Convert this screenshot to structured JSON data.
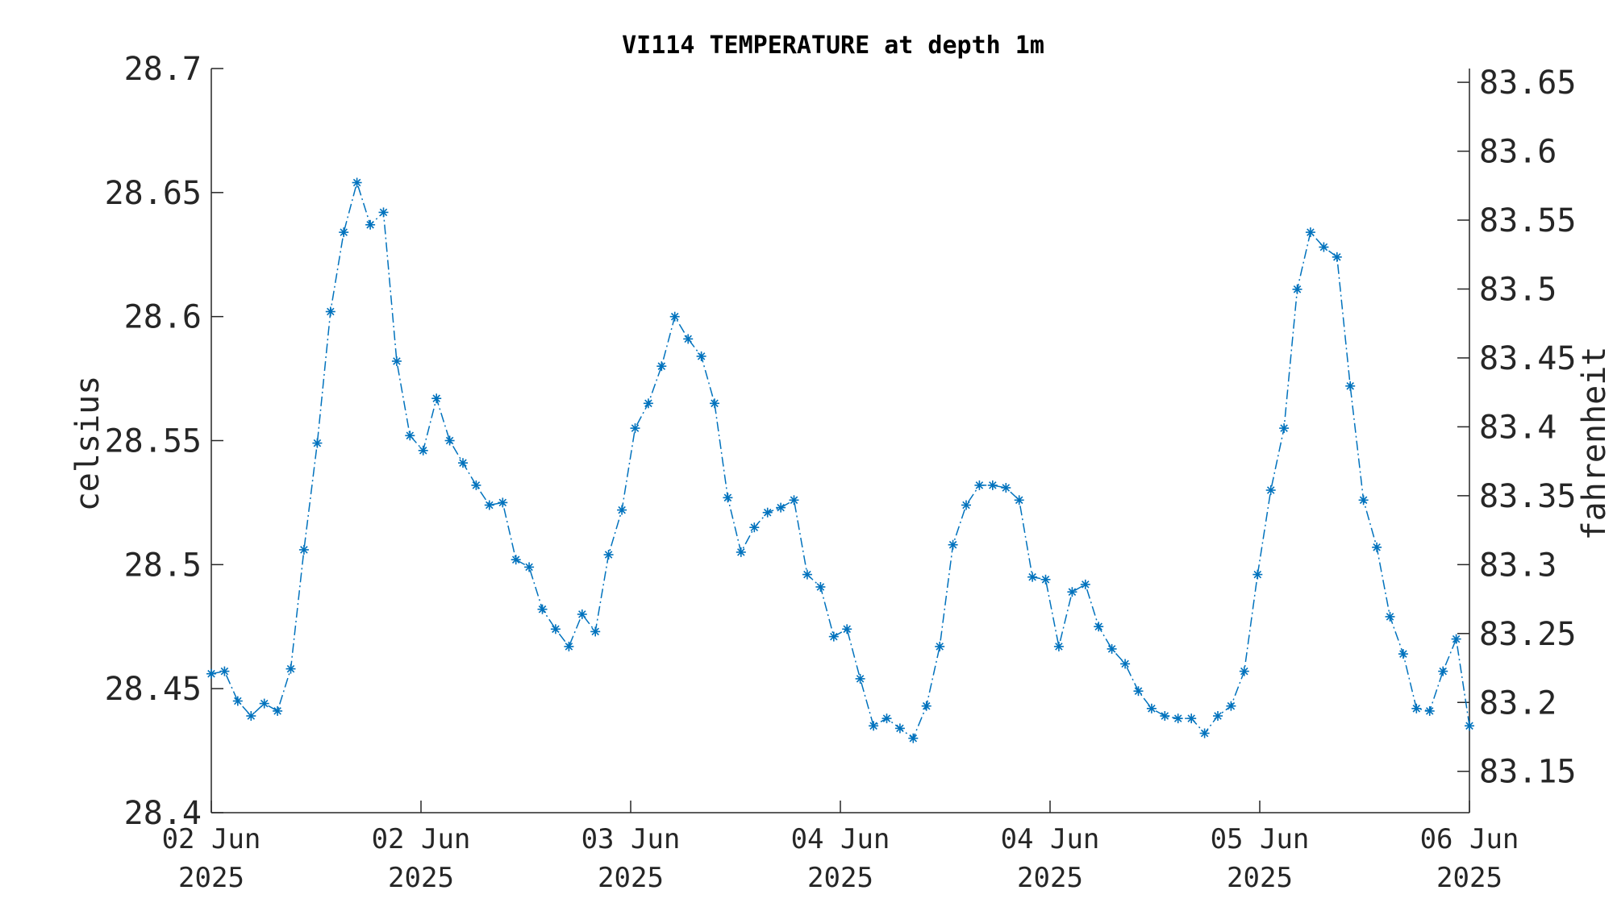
{
  "chart_data": {
    "type": "line",
    "title": "VI114 TEMPERATURE at depth 1m",
    "ylabel": "celsius",
    "y2label": "fahrenheit",
    "ylim": [
      28.4,
      28.7
    ],
    "y2lim": [
      83.12,
      83.66
    ],
    "y_ticks": [
      "28.4",
      "28.45",
      "28.5",
      "28.55",
      "28.6",
      "28.65",
      "28.7"
    ],
    "y2_ticks": [
      "83.15",
      "83.2",
      "83.25",
      "83.3",
      "83.35",
      "83.4",
      "83.45",
      "83.5",
      "83.55",
      "83.6",
      "83.65"
    ],
    "x_ticks": [
      {
        "line1": "02 Jun",
        "line2": "2025"
      },
      {
        "line1": "02 Jun",
        "line2": "2025"
      },
      {
        "line1": "03 Jun",
        "line2": "2025"
      },
      {
        "line1": "04 Jun",
        "line2": "2025"
      },
      {
        "line1": "04 Jun",
        "line2": "2025"
      },
      {
        "line1": "05 Jun",
        "line2": "2025"
      },
      {
        "line1": "06 Jun",
        "line2": "2025"
      }
    ],
    "grid": false,
    "color": "#0072BD",
    "marker": "asterisk",
    "line_style": "dash-dot",
    "series": [
      {
        "name": "",
        "values": [
          28.456,
          28.457,
          28.445,
          28.439,
          28.444,
          28.441,
          28.458,
          28.506,
          28.549,
          28.602,
          28.634,
          28.654,
          28.637,
          28.642,
          28.582,
          28.552,
          28.546,
          28.567,
          28.55,
          28.541,
          28.532,
          28.524,
          28.525,
          28.502,
          28.499,
          28.482,
          28.474,
          28.467,
          28.48,
          28.473,
          28.504,
          28.522,
          28.555,
          28.565,
          28.58,
          28.6,
          28.591,
          28.584,
          28.565,
          28.527,
          28.505,
          28.515,
          28.521,
          28.523,
          28.526,
          28.496,
          28.491,
          28.471,
          28.474,
          28.454,
          28.435,
          28.438,
          28.434,
          28.43,
          28.443,
          28.467,
          28.508,
          28.524,
          28.532,
          28.532,
          28.531,
          28.526,
          28.495,
          28.494,
          28.467,
          28.489,
          28.492,
          28.475,
          28.466,
          28.46,
          28.449,
          28.442,
          28.439,
          28.438,
          28.438,
          28.432,
          28.439,
          28.443,
          28.457,
          28.496,
          28.53,
          28.555,
          28.611,
          28.634,
          28.628,
          28.624,
          28.572,
          28.526,
          28.507,
          28.479,
          28.464,
          28.442,
          28.441,
          28.457,
          28.47,
          28.435
        ]
      }
    ]
  }
}
